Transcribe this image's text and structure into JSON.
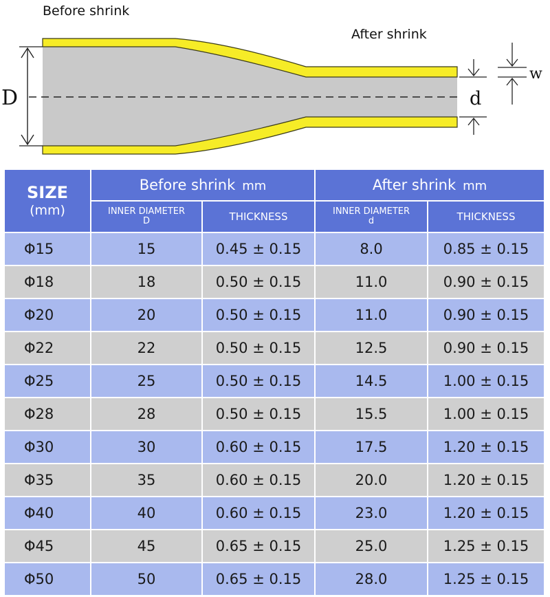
{
  "diagram": {
    "before_label": "Before shrink",
    "after_label": "After shrink",
    "big_d_label": "D",
    "small_d_label": "d",
    "wall_label": "w",
    "colors": {
      "sleeve": "#f6ec27",
      "sleeve_edge": "#3a3a1a",
      "core": "#c9c9c9"
    }
  },
  "table": {
    "header": {
      "size_line1": "SIZE",
      "size_line2": "(mm)",
      "before_group": "Before  shrink",
      "before_unit": "mm",
      "after_group": "After shrink",
      "after_unit": "mm",
      "before_inner": "INNER DIAMETER",
      "before_inner_sym": "D",
      "before_thickness": "THICKNESS",
      "after_inner": "INNER DIAMETER",
      "after_inner_sym": "d",
      "after_thickness": "THICKNESS"
    },
    "rows": [
      {
        "size": "Φ15",
        "inner_d": "15",
        "thickness_before": "0.45 ± 0.15",
        "inner_d_after": "8.0",
        "thickness_after": "0.85 ± 0.15"
      },
      {
        "size": "Φ18",
        "inner_d": "18",
        "thickness_before": "0.50 ± 0.15",
        "inner_d_after": "11.0",
        "thickness_after": "0.90 ± 0.15"
      },
      {
        "size": "Φ20",
        "inner_d": "20",
        "thickness_before": "0.50 ± 0.15",
        "inner_d_after": "11.0",
        "thickness_after": "0.90 ± 0.15"
      },
      {
        "size": "Φ22",
        "inner_d": "22",
        "thickness_before": "0.50 ± 0.15",
        "inner_d_after": "12.5",
        "thickness_after": "0.90 ± 0.15"
      },
      {
        "size": "Φ25",
        "inner_d": "25",
        "thickness_before": "0.50 ± 0.15",
        "inner_d_after": "14.5",
        "thickness_after": "1.00 ± 0.15"
      },
      {
        "size": "Φ28",
        "inner_d": "28",
        "thickness_before": "0.50 ± 0.15",
        "inner_d_after": "15.5",
        "thickness_after": "1.00 ± 0.15"
      },
      {
        "size": "Φ30",
        "inner_d": "30",
        "thickness_before": "0.60 ± 0.15",
        "inner_d_after": "17.5",
        "thickness_after": "1.20 ± 0.15"
      },
      {
        "size": "Φ35",
        "inner_d": "35",
        "thickness_before": "0.60 ± 0.15",
        "inner_d_after": "20.0",
        "thickness_after": "1.20 ± 0.15"
      },
      {
        "size": "Φ40",
        "inner_d": "40",
        "thickness_before": "0.60 ± 0.15",
        "inner_d_after": "23.0",
        "thickness_after": "1.20 ± 0.15"
      },
      {
        "size": "Φ45",
        "inner_d": "45",
        "thickness_before": "0.65 ± 0.15",
        "inner_d_after": "25.0",
        "thickness_after": "1.25 ± 0.15"
      },
      {
        "size": "Φ50",
        "inner_d": "50",
        "thickness_before": "0.65 ± 0.15",
        "inner_d_after": "28.0",
        "thickness_after": "1.25 ± 0.15"
      }
    ]
  }
}
